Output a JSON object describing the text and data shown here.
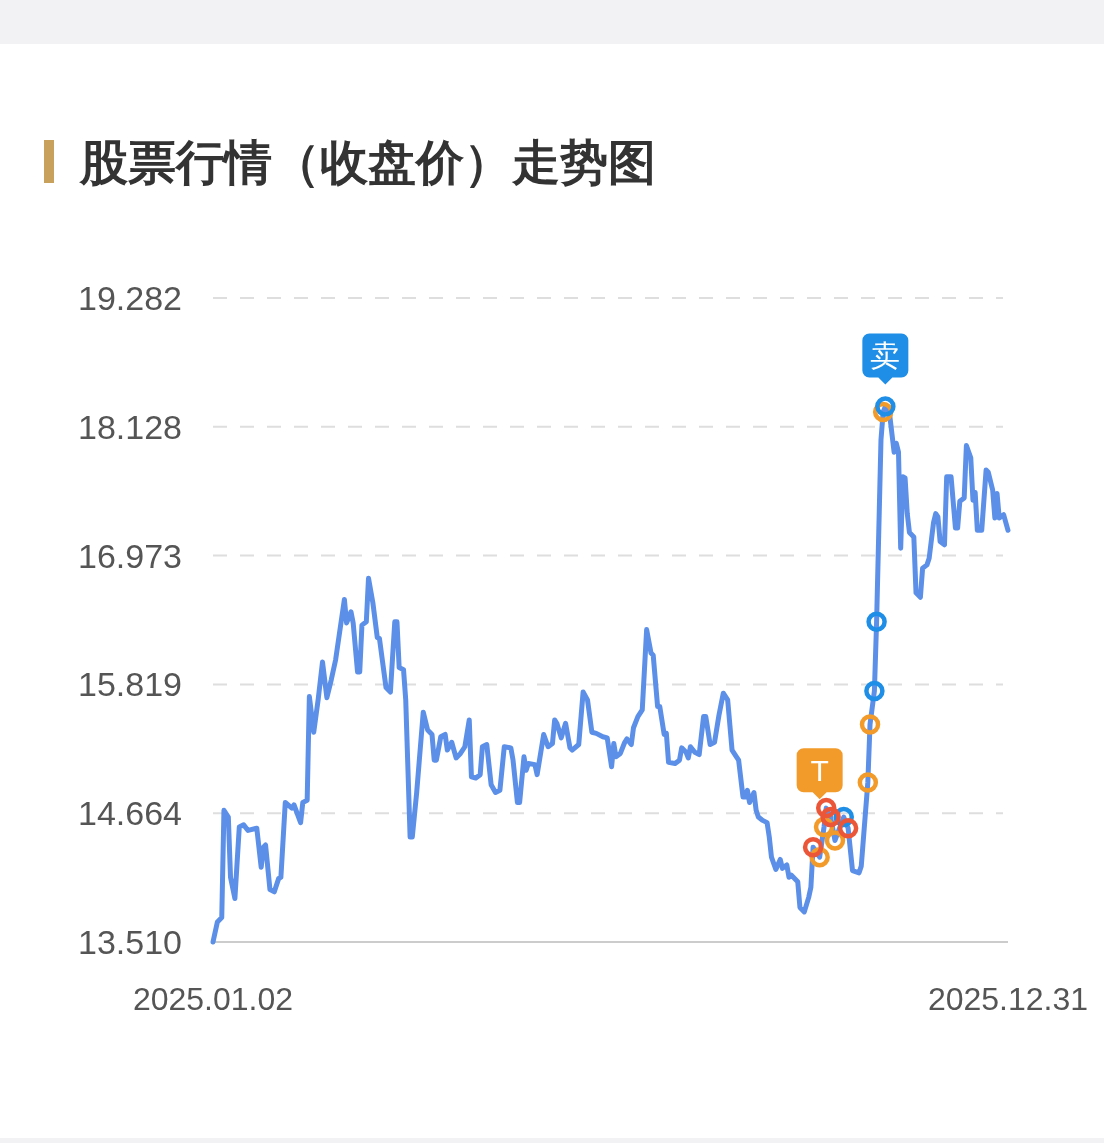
{
  "chart_data": {
    "type": "line",
    "title": "股票行情（收盘价）走势图",
    "xlim": [
      "2025-01-02",
      "2025-12-31"
    ],
    "xticks": [
      {
        "value": "2025-01-02",
        "label": "2025.01.02"
      },
      {
        "value": "2025-12-31",
        "label": "2025.12.31"
      }
    ],
    "ylim": [
      13.51,
      19.282
    ],
    "yticks": [
      {
        "value": 13.51,
        "label": "13.510"
      },
      14.664,
      15.819,
      16.973,
      18.128,
      19.282
    ],
    "grid": "y",
    "series": [
      {
        "type": "line",
        "color": "#5b8fe8",
        "x": [
          "2025-01-02",
          "2025-01-04",
          "2025-01-06",
          "2025-01-07",
          "2025-01-09",
          "2025-01-10",
          "2025-01-12",
          "2025-01-14",
          "2025-01-16",
          "2025-01-18",
          "2025-01-22",
          "2025-01-24",
          "2025-01-25",
          "2025-01-26",
          "2025-01-28",
          "2025-01-30",
          "2025-02-01",
          "2025-02-02",
          "2025-02-04",
          "2025-02-07",
          "2025-02-08",
          "2025-02-11",
          "2025-02-12",
          "2025-02-14",
          "2025-02-15",
          "2025-02-17",
          "2025-02-19",
          "2025-02-21",
          "2025-02-23",
          "2025-02-25",
          "2025-02-27",
          "2025-03-03",
          "2025-03-04",
          "2025-03-06",
          "2025-03-07",
          "2025-03-09",
          "2025-03-10",
          "2025-03-11",
          "2025-03-13",
          "2025-03-14",
          "2025-03-16",
          "2025-03-18",
          "2025-03-19",
          "2025-03-22",
          "2025-03-24",
          "2025-03-26",
          "2025-03-27",
          "2025-03-28",
          "2025-03-30",
          "2025-03-31",
          "2025-04-02",
          "2025-04-03",
          "2025-04-05",
          "2025-04-08",
          "2025-04-10",
          "2025-04-12",
          "2025-04-13",
          "2025-04-14",
          "2025-04-16",
          "2025-04-18",
          "2025-04-19",
          "2025-04-21",
          "2025-04-23",
          "2025-04-25",
          "2025-04-27",
          "2025-04-29",
          "2025-04-30",
          "2025-05-02",
          "2025-05-04",
          "2025-05-05",
          "2025-05-07",
          "2025-05-09",
          "2025-05-11",
          "2025-05-13",
          "2025-05-15",
          "2025-05-18",
          "2025-05-19",
          "2025-05-21",
          "2025-05-22",
          "2025-05-24",
          "2025-05-25",
          "2025-05-26",
          "2025-05-29",
          "2025-05-30",
          "2025-06-02",
          "2025-06-04",
          "2025-06-06",
          "2025-06-07",
          "2025-06-08",
          "2025-06-10",
          "2025-06-12",
          "2025-06-14",
          "2025-06-15",
          "2025-06-18",
          "2025-06-20",
          "2025-06-22",
          "2025-06-24",
          "2025-06-26",
          "2025-06-29",
          "2025-07-01",
          "2025-07-03",
          "2025-07-04",
          "2025-07-05",
          "2025-07-07",
          "2025-07-09",
          "2025-07-10",
          "2025-07-12",
          "2025-07-13",
          "2025-07-15",
          "2025-07-17",
          "2025-07-19",
          "2025-07-21",
          "2025-07-22",
          "2025-07-24",
          "2025-07-25",
          "2025-07-27",
          "2025-07-28",
          "2025-07-29",
          "2025-08-01",
          "2025-08-03",
          "2025-08-04",
          "2025-08-06",
          "2025-08-07",
          "2025-08-08",
          "2025-08-10",
          "2025-08-12",
          "2025-08-14",
          "2025-08-15",
          "2025-08-17",
          "2025-08-19",
          "2025-08-21",
          "2025-08-23",
          "2025-08-25",
          "2025-08-27",
          "2025-08-29",
          "2025-08-30",
          "2025-09-01",
          "2025-09-02",
          "2025-09-03",
          "2025-09-04",
          "2025-09-06",
          "2025-09-07",
          "2025-09-08",
          "2025-09-10",
          "2025-09-12",
          "2025-09-13",
          "2025-09-14",
          "2025-09-16",
          "2025-09-18",
          "2025-09-19",
          "2025-09-21",
          "2025-09-22",
          "2025-09-23",
          "2025-09-26",
          "2025-09-27",
          "2025-09-29",
          "2025-10-01",
          "2025-10-02",
          "2025-10-03",
          "2025-10-06",
          "2025-10-08",
          "2025-10-09",
          "2025-10-11",
          "2025-10-13",
          "2025-10-17",
          "2025-10-19",
          "2025-10-21",
          "2025-10-24",
          "2025-10-25",
          "2025-10-28",
          "2025-10-29",
          "2025-10-31",
          "2025-11-01",
          "2025-11-03",
          "2025-11-04",
          "2025-11-05",
          "2025-11-07",
          "2025-11-09",
          "2025-11-10",
          "2025-11-11",
          "2025-11-12",
          "2025-11-13",
          "2025-11-14",
          "2025-11-15",
          "2025-11-16",
          "2025-11-18",
          "2025-11-19",
          "2025-11-21",
          "2025-11-22",
          "2025-11-24",
          "2025-11-25",
          "2025-11-27",
          "2025-11-28",
          "2025-11-29",
          "2025-11-30",
          "2025-12-02",
          "2025-12-03",
          "2025-12-05",
          "2025-12-07",
          "2025-12-08",
          "2025-12-09",
          "2025-12-11",
          "2025-12-12",
          "2025-12-14",
          "2025-12-15",
          "2025-12-16",
          "2025-12-17",
          "2025-12-19",
          "2025-12-21",
          "2025-12-22",
          "2025-12-24",
          "2025-12-25",
          "2025-12-26",
          "2025-12-27",
          "2025-12-29",
          "2025-12-31"
        ],
        "values": [
          13.51,
          13.69,
          13.73,
          14.69,
          14.63,
          14.09,
          13.9,
          14.54,
          14.56,
          14.51,
          14.53,
          14.18,
          14.36,
          14.38,
          13.98,
          13.96,
          14.08,
          14.09,
          14.76,
          14.71,
          14.74,
          14.58,
          14.76,
          14.78,
          15.71,
          15.39,
          15.68,
          16.02,
          15.7,
          15.86,
          16.04,
          16.58,
          16.37,
          16.47,
          16.37,
          15.93,
          15.93,
          16.35,
          16.38,
          16.77,
          16.55,
          16.24,
          16.23,
          15.79,
          15.75,
          16.38,
          16.38,
          15.97,
          15.95,
          15.68,
          14.45,
          14.45,
          14.85,
          15.57,
          15.41,
          15.37,
          15.14,
          15.14,
          15.35,
          15.37,
          15.23,
          15.3,
          15.16,
          15.2,
          15.26,
          15.5,
          14.99,
          14.98,
          15.01,
          15.26,
          15.28,
          14.92,
          14.85,
          14.87,
          15.26,
          15.25,
          15.14,
          14.76,
          14.76,
          15.17,
          15.05,
          15.11,
          15.1,
          15.01,
          15.37,
          15.26,
          15.29,
          15.5,
          15.47,
          15.34,
          15.47,
          15.25,
          15.23,
          15.28,
          15.75,
          15.68,
          15.39,
          15.38,
          15.35,
          15.34,
          15.08,
          15.29,
          15.17,
          15.2,
          15.3,
          15.33,
          15.28,
          15.43,
          15.53,
          15.59,
          16.31,
          16.1,
          16.08,
          15.62,
          15.62,
          15.37,
          15.38,
          15.12,
          15.11,
          15.14,
          15.25,
          15.21,
          15.16,
          15.26,
          15.21,
          15.19,
          15.53,
          15.53,
          15.28,
          15.3,
          15.54,
          15.74,
          15.68,
          15.23,
          15.17,
          15.14,
          14.81,
          14.81,
          14.87,
          14.76,
          14.85,
          14.69,
          14.63,
          14.6,
          14.58,
          14.45,
          14.27,
          14.16,
          14.25,
          14.17,
          14.2,
          14.09,
          14.11,
          14.05,
          13.82,
          13.78,
          13.91,
          14.0,
          14.36,
          14.27,
          14.54,
          14.71,
          14.63,
          14.42,
          14.63,
          14.53,
          14.15,
          14.13,
          14.19,
          14.94,
          15.46,
          15.76,
          16.38,
          18.01,
          18.26,
          18.31,
          18.23,
          17.9,
          17.98,
          17.9,
          17.04,
          17.68,
          17.67,
          17.35,
          17.18,
          17.14,
          16.64,
          16.6,
          16.86,
          16.89,
          16.95,
          17.27,
          17.35,
          17.32,
          17.1,
          17.07,
          17.68,
          17.68,
          17.22,
          17.22,
          17.46,
          17.49,
          17.96,
          17.85,
          17.47,
          17.54,
          17.2,
          17.2,
          17.74,
          17.72,
          17.56,
          17.31,
          17.53,
          17.31,
          17.34,
          17.2
        ]
      },
      {
        "type": "scatter",
        "marker": "circle",
        "color": "#f39b2a",
        "x": [
          "2025-10-06",
          "2025-10-08",
          "2025-10-13",
          "2025-10-28",
          "2025-10-29",
          "2025-11-04"
        ],
        "values": [
          14.27,
          14.54,
          14.42,
          14.94,
          15.46,
          18.26
        ]
      },
      {
        "type": "scatter",
        "marker": "circle",
        "color": "#1f8ee6",
        "x": [
          "2025-10-17",
          "2025-10-31",
          "2025-11-01",
          "2025-11-05"
        ],
        "values": [
          14.63,
          15.76,
          16.38,
          18.31
        ]
      },
      {
        "type": "scatter",
        "marker": "circle",
        "color": "#ec5638",
        "x": [
          "2025-10-03",
          "2025-10-09",
          "2025-10-11",
          "2025-10-19"
        ],
        "values": [
          14.36,
          14.71,
          14.63,
          14.53
        ]
      }
    ],
    "annotations": [
      {
        "text": "T",
        "x": "2025-10-06",
        "y": 14.27
      },
      {
        "text": "卖",
        "x": "2025-11-05",
        "y": 18.31
      }
    ]
  }
}
